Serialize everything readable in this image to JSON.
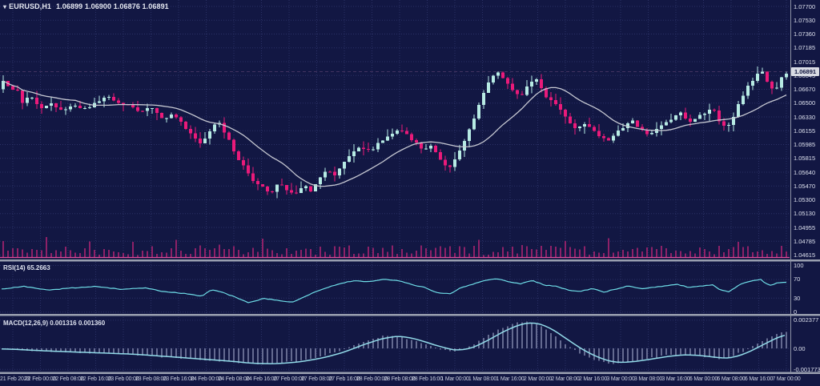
{
  "title_bar": {
    "marker_glyph": "▾",
    "symbol_timeframe": "EURUSD,H1",
    "ohlc_text": "1.06899 1.06900 1.06876 1.06891"
  },
  "price_axis": {
    "tick_labels": [
      "1.07700",
      "1.07530",
      "1.07360",
      "1.07185",
      "1.07015",
      "1.06845",
      "1.06670",
      "1.06500",
      "1.06330",
      "1.06155",
      "1.05985",
      "1.05815",
      "1.05640",
      "1.05470",
      "1.05300",
      "1.05130",
      "1.04955",
      "1.04785",
      "1.04615"
    ],
    "current_price_label": "1.06891"
  },
  "indicators": {
    "rsi": {
      "label": "RSI(14) 65.2663",
      "level_labels": [
        "100",
        "70",
        "30",
        "0"
      ]
    },
    "macd": {
      "label": "MACD(12,26,9) 0.001316 0.001360",
      "axis_labels": [
        "0.002377",
        "0.00",
        "-0.001773"
      ]
    }
  },
  "colors": {
    "background": "#121743",
    "grid": "#2b3166",
    "bull": "#b7ebe4",
    "bear": "#ea1a7a",
    "ma_line": "#c6c8d2",
    "volume_bar": "#8e2168",
    "volume_baseline": "#dd4f9c",
    "bid_line": "#8a5f8f",
    "rsi_line": "#6edce6",
    "macd_signal": "#93dbe9",
    "macd_hist": "#b6bedc",
    "splitter": "#9aa0b0",
    "axis_line": "#8d93a5",
    "axis_text": "#dde1ee",
    "price_box_bg": "#d8dbe4"
  },
  "chart_data": {
    "type": "candlestick",
    "symbol": "EURUSD",
    "timeframe": "H1",
    "title": "EURUSD,H1 1.06899 1.06900 1.06876 1.06891",
    "ohlc": {
      "open": 1.06899,
      "high": 1.069,
      "low": 1.06876,
      "close": 1.06891
    },
    "ylim": [
      1.04615,
      1.077
    ],
    "current_price": 1.06891,
    "grid": true,
    "x_labels": [
      "21 Feb 2023",
      "22 Feb 00:00",
      "22 Feb 08:00",
      "22 Feb 16:00",
      "23 Feb 00:00",
      "23 Feb 08:00",
      "23 Feb 16:00",
      "24 Feb 00:00",
      "24 Feb 08:00",
      "24 Feb 16:00",
      "27 Feb 00:00",
      "27 Feb 08:00",
      "27 Feb 16:00",
      "28 Feb 00:00",
      "28 Feb 08:00",
      "28 Feb 16:00",
      "1 Mar 00:00",
      "1 Mar 08:00",
      "1 Mar 16:00",
      "2 Mar 00:00",
      "2 Mar 08:00",
      "2 Mar 16:00",
      "3 Mar 00:00",
      "3 Mar 08:00",
      "3 Mar 16:00",
      "6 Mar 00:00",
      "6 Mar 08:00",
      "6 Mar 16:00",
      "7 Mar 00:00"
    ],
    "candle_count": 164,
    "price_path_anchors": [
      [
        2,
        1.0667
      ],
      [
        6,
        1.0691
      ],
      [
        12,
        1.066
      ],
      [
        20,
        1.067
      ],
      [
        28,
        1.0651
      ],
      [
        38,
        1.0659
      ],
      [
        50,
        1.0642
      ],
      [
        62,
        1.065
      ],
      [
        75,
        1.064
      ],
      [
        90,
        1.0646
      ],
      [
        105,
        1.0643
      ],
      [
        120,
        1.065
      ],
      [
        132,
        1.0658
      ],
      [
        145,
        1.0653
      ],
      [
        160,
        1.0646
      ],
      [
        175,
        1.064
      ],
      [
        190,
        1.0645
      ],
      [
        205,
        1.063
      ],
      [
        218,
        1.0637
      ],
      [
        230,
        1.062
      ],
      [
        242,
        1.0608
      ],
      [
        252,
        1.06
      ],
      [
        264,
        1.062
      ],
      [
        274,
        1.0626
      ],
      [
        285,
        1.0605
      ],
      [
        297,
        1.0582
      ],
      [
        308,
        1.0566
      ],
      [
        318,
        1.0551
      ],
      [
        328,
        1.0545
      ],
      [
        338,
        1.0537
      ],
      [
        348,
        1.0551
      ],
      [
        358,
        1.0542
      ],
      [
        368,
        1.0535
      ],
      [
        378,
        1.0549
      ],
      [
        388,
        1.0541
      ],
      [
        398,
        1.0556
      ],
      [
        408,
        1.0569
      ],
      [
        418,
        1.0561
      ],
      [
        428,
        1.0576
      ],
      [
        440,
        1.059
      ],
      [
        452,
        1.0596
      ],
      [
        462,
        1.0589
      ],
      [
        474,
        1.0602
      ],
      [
        486,
        1.061
      ],
      [
        498,
        1.0616
      ],
      [
        508,
        1.0612
      ],
      [
        518,
        1.0601
      ],
      [
        530,
        1.0591
      ],
      [
        540,
        1.0598
      ],
      [
        552,
        1.0577
      ],
      [
        562,
        1.057
      ],
      [
        572,
        1.0589
      ],
      [
        582,
        1.0606
      ],
      [
        592,
        1.0632
      ],
      [
        602,
        1.0658
      ],
      [
        612,
        1.0681
      ],
      [
        620,
        1.069
      ],
      [
        630,
        1.0677
      ],
      [
        640,
        1.0667
      ],
      [
        650,
        1.0657
      ],
      [
        660,
        1.0673
      ],
      [
        670,
        1.0678
      ],
      [
        680,
        1.0661
      ],
      [
        690,
        1.0651
      ],
      [
        700,
        1.0641
      ],
      [
        710,
        1.0629
      ],
      [
        720,
        1.0616
      ],
      [
        730,
        1.0624
      ],
      [
        740,
        1.0617
      ],
      [
        750,
        1.0607
      ],
      [
        760,
        1.0602
      ],
      [
        770,
        1.0613
      ],
      [
        780,
        1.0622
      ],
      [
        790,
        1.0627
      ],
      [
        800,
        1.0617
      ],
      [
        810,
        1.0611
      ],
      [
        820,
        1.0619
      ],
      [
        830,
        1.0624
      ],
      [
        840,
        1.0631
      ],
      [
        850,
        1.0638
      ],
      [
        860,
        1.0627
      ],
      [
        870,
        1.0632
      ],
      [
        880,
        1.0638
      ],
      [
        890,
        1.0644
      ],
      [
        898,
        1.0629
      ],
      [
        906,
        1.062
      ],
      [
        914,
        1.0629
      ],
      [
        924,
        1.0654
      ],
      [
        934,
        1.0671
      ],
      [
        944,
        1.0684
      ],
      [
        952,
        1.0689
      ],
      [
        960,
        1.0671
      ],
      [
        968,
        1.0665
      ],
      [
        976,
        1.0681
      ],
      [
        984,
        1.0689
      ]
    ],
    "moving_average": {
      "period": 16
    },
    "panes": [
      {
        "name": "volume",
        "style": "histogram"
      },
      {
        "name": "RSI",
        "value": 65.2663,
        "levels": [
          100,
          70,
          30,
          0
        ],
        "path_anchors": [
          [
            2,
            50
          ],
          [
            30,
            55
          ],
          [
            60,
            47
          ],
          [
            90,
            52
          ],
          [
            120,
            55
          ],
          [
            150,
            49
          ],
          [
            180,
            52
          ],
          [
            205,
            44
          ],
          [
            230,
            40
          ],
          [
            252,
            34
          ],
          [
            264,
            48
          ],
          [
            278,
            42
          ],
          [
            297,
            30
          ],
          [
            310,
            21
          ],
          [
            330,
            29
          ],
          [
            348,
            25
          ],
          [
            365,
            21
          ],
          [
            380,
            33
          ],
          [
            398,
            46
          ],
          [
            412,
            55
          ],
          [
            428,
            62
          ],
          [
            440,
            67
          ],
          [
            460,
            65
          ],
          [
            480,
            70
          ],
          [
            500,
            67
          ],
          [
            515,
            59
          ],
          [
            530,
            53
          ],
          [
            545,
            42
          ],
          [
            562,
            39
          ],
          [
            575,
            52
          ],
          [
            592,
            61
          ],
          [
            606,
            68
          ],
          [
            620,
            72
          ],
          [
            635,
            65
          ],
          [
            650,
            61
          ],
          [
            665,
            68
          ],
          [
            680,
            58
          ],
          [
            695,
            55
          ],
          [
            710,
            47
          ],
          [
            725,
            44
          ],
          [
            740,
            51
          ],
          [
            755,
            43
          ],
          [
            770,
            50
          ],
          [
            785,
            56
          ],
          [
            800,
            50
          ],
          [
            815,
            53
          ],
          [
            830,
            56
          ],
          [
            845,
            60
          ],
          [
            860,
            53
          ],
          [
            875,
            56
          ],
          [
            890,
            58
          ],
          [
            900,
            47
          ],
          [
            910,
            44
          ],
          [
            924,
            59
          ],
          [
            940,
            68
          ],
          [
            950,
            70
          ],
          [
            960,
            57
          ],
          [
            970,
            62
          ],
          [
            984,
            65
          ]
        ]
      },
      {
        "name": "MACD",
        "main_value": 0.001316,
        "signal_value": 0.00136,
        "axis_values": [
          0.002377,
          0.0,
          -0.001773
        ],
        "path_anchors": [
          [
            2,
            -5e-05
          ],
          [
            40,
            -0.0002
          ],
          [
            80,
            -0.0003
          ],
          [
            120,
            -0.0004
          ],
          [
            160,
            -0.0005
          ],
          [
            200,
            -0.0007
          ],
          [
            240,
            -0.0009
          ],
          [
            280,
            -0.0011
          ],
          [
            310,
            -0.0013
          ],
          [
            340,
            -0.0013
          ],
          [
            370,
            -0.0011
          ],
          [
            400,
            -0.0007
          ],
          [
            425,
            -0.0002
          ],
          [
            450,
            0.0005
          ],
          [
            475,
            0.001
          ],
          [
            495,
            0.0011
          ],
          [
            515,
            0.0007
          ],
          [
            540,
            0.0001
          ],
          [
            565,
            -0.0003
          ],
          [
            585,
            0.0001
          ],
          [
            605,
            0.0009
          ],
          [
            625,
            0.0017
          ],
          [
            645,
            0.0022
          ],
          [
            658,
            0.0023
          ],
          [
            672,
            0.002
          ],
          [
            690,
            0.0012
          ],
          [
            705,
            0.0004
          ],
          [
            718,
            -0.0002
          ],
          [
            732,
            -0.0007
          ],
          [
            748,
            -0.0011
          ],
          [
            762,
            -0.0013
          ],
          [
            778,
            -0.0012
          ],
          [
            795,
            -0.001
          ],
          [
            812,
            -0.0008
          ],
          [
            830,
            -0.0006
          ],
          [
            848,
            -0.0005
          ],
          [
            868,
            -0.0006
          ],
          [
            888,
            -0.0008
          ],
          [
            905,
            -0.0009
          ],
          [
            920,
            -0.0005
          ],
          [
            935,
            0.0
          ],
          [
            950,
            0.0006
          ],
          [
            965,
            0.0011
          ],
          [
            975,
            0.0013
          ],
          [
            984,
            0.00136
          ]
        ]
      }
    ]
  }
}
